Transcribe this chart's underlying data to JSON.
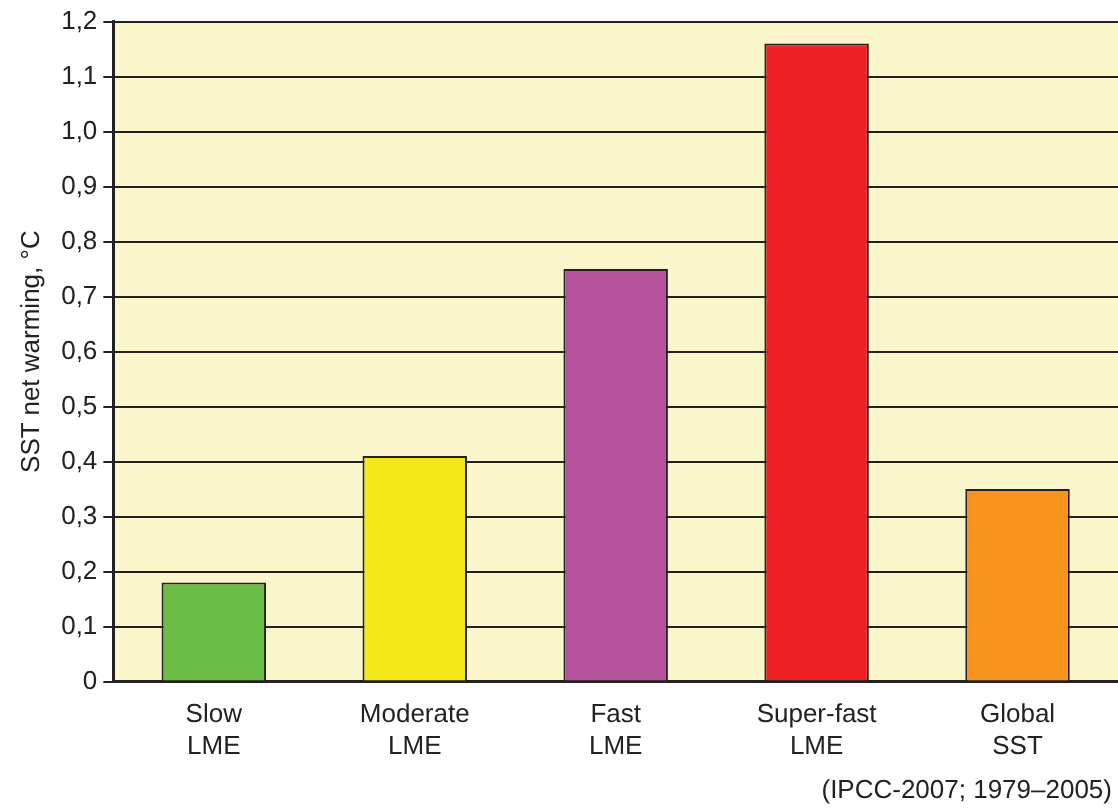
{
  "chart_data": {
    "type": "bar",
    "ylabel": "SST net warming, °C",
    "categories": [
      "Slow\nLME",
      "Moderate\nLME",
      "Fast\nLME",
      "Super-fast\nLME",
      "Global\nSST"
    ],
    "values": [
      0.18,
      0.41,
      0.75,
      1.16,
      0.35
    ],
    "colors": [
      "#6cbd45",
      "#f5e91a",
      "#b5529c",
      "#ec2227",
      "#f7941d"
    ],
    "ylim": [
      0,
      1.2
    ],
    "yticks": [
      0,
      {
        "value": 0.1,
        "label": "0,1"
      },
      {
        "value": 0.2,
        "label": "0,2"
      },
      {
        "value": 0.3,
        "label": "0,3"
      },
      {
        "value": 0.4,
        "label": "0,4"
      },
      {
        "value": 0.5,
        "label": "0,5"
      },
      {
        "value": 0.6,
        "label": "0,6"
      },
      {
        "value": 0.7,
        "label": "0,7"
      },
      {
        "value": 0.8,
        "label": "0,8"
      },
      {
        "value": 0.9,
        "label": "0,9"
      },
      {
        "value": 1.0,
        "label": "1,0"
      },
      {
        "value": 1.1,
        "label": "1,1"
      },
      {
        "value": 1.2,
        "label": "1,2"
      }
    ],
    "grid": "y",
    "annotations": [
      "(IPCC-2007; 1979–2005)"
    ]
  }
}
